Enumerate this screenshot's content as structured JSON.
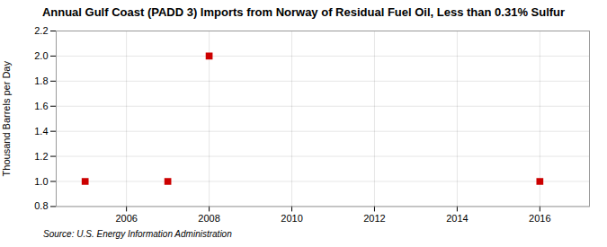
{
  "chart_data": {
    "type": "scatter",
    "title": "Annual Gulf Coast (PADD 3) Imports from Norway of Residual Fuel Oil, Less than 0.31% Sulfur",
    "ylabel": "Thousand Barrels per Day",
    "source": "Source: U.S. Energy Information Administration",
    "x": [
      2005,
      2007,
      2008,
      2016
    ],
    "values": [
      1.0,
      1.0,
      2.0,
      1.0
    ],
    "color": "#cc0000",
    "marker": "square",
    "xlim": [
      2004.3,
      2017.2
    ],
    "ylim": [
      0.8,
      2.2
    ],
    "xticks": [
      2006,
      2008,
      2010,
      2012,
      2014,
      2016
    ],
    "yticks": [
      0.8,
      {
        "value": 1.0,
        "label": "1.0"
      },
      1.2,
      1.4,
      1.6,
      1.8,
      {
        "value": 2.0,
        "label": "2.0"
      },
      2.2
    ],
    "grid": true
  }
}
